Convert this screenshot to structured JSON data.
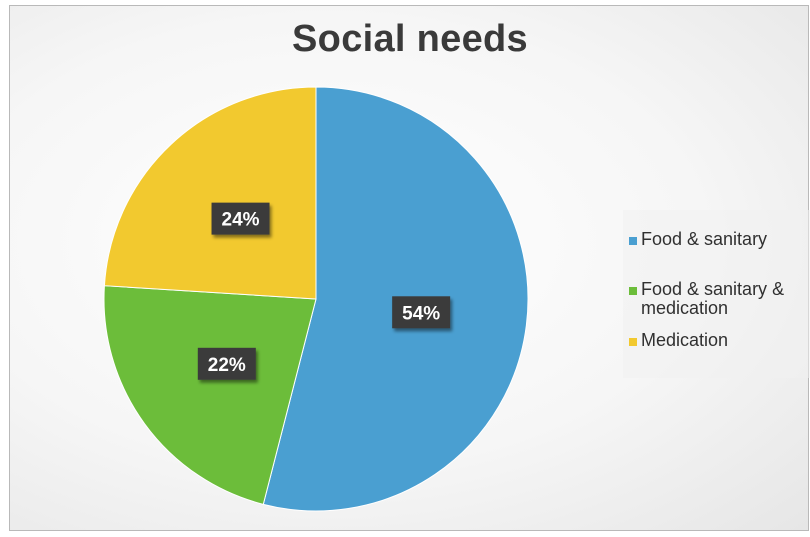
{
  "chart_data": {
    "type": "pie",
    "title": "Social needs",
    "slices": [
      {
        "label": "Food & sanitary",
        "value": 54,
        "display": "54%",
        "color": "#4a9fd1"
      },
      {
        "label": "Food & sanitary & medication",
        "value": 22,
        "display": "22%",
        "color": "#6cbd3a"
      },
      {
        "label": "Medication",
        "value": 24,
        "display": "24%",
        "color": "#f2c92f"
      }
    ],
    "legend": {
      "position": "right",
      "items": [
        {
          "label": "Food & sanitary",
          "color": "#4a9fd1"
        },
        {
          "label": "Food & sanitary & medication",
          "color": "#6cbd3a"
        },
        {
          "label": "Medication",
          "color": "#f2c92f"
        }
      ]
    }
  }
}
